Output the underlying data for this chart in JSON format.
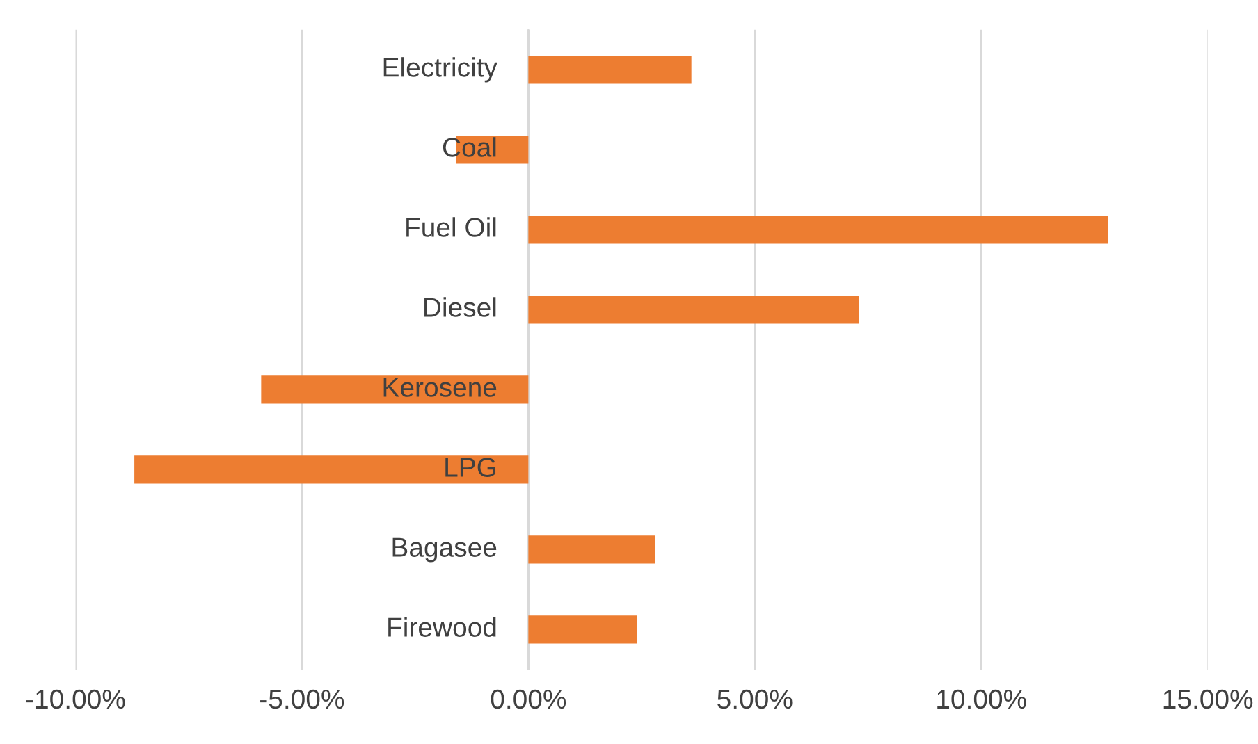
{
  "chart_data": {
    "type": "bar",
    "orientation": "horizontal",
    "categories": [
      "Electricity",
      "Coal",
      "Fuel Oil",
      "Diesel",
      "Kerosene",
      "LPG",
      "Bagasee",
      "Firewood"
    ],
    "series": [
      {
        "color": "#ed7d31",
        "values": [
          3.6,
          -1.6,
          12.8,
          7.3,
          -5.9,
          -8.7,
          2.8,
          2.4
        ]
      }
    ],
    "xlim": [
      -10,
      15
    ],
    "xticks": [
      {
        "value": -10,
        "label": "-10.00%"
      },
      {
        "value": -5,
        "label": "-5.00%"
      },
      {
        "value": 0,
        "label": "0.00%"
      },
      {
        "value": 5,
        "label": "5.00%"
      },
      {
        "value": 10,
        "label": "10.00%"
      },
      {
        "value": 15,
        "label": "15.00%"
      }
    ],
    "grid": "x",
    "legend": false
  }
}
